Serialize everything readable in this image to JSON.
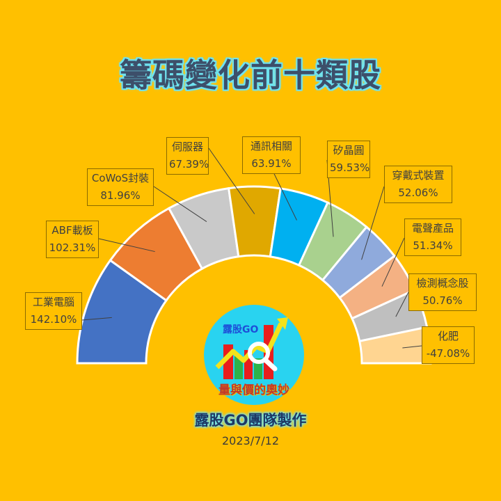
{
  "title": "籌碼變化前十類股",
  "credit": "露股GO團隊製作",
  "date": "2023/7/12",
  "logo": {
    "brand": "露股GO",
    "slogan": "量與價的奧妙"
  },
  "chart_data": {
    "type": "pie",
    "subtype": "half-donut",
    "title": "籌碼變化前十類股",
    "categories": [
      "工業電腦",
      "ABF載板",
      "CoWoS封裝",
      "伺服器",
      "通訊相關",
      "矽晶圓",
      "穿戴式裝置",
      "電聲產品",
      "檢測概念股",
      "化肥"
    ],
    "values": [
      142.1,
      102.31,
      81.96,
      67.39,
      63.91,
      59.53,
      52.06,
      51.34,
      50.76,
      -47.08
    ],
    "value_labels": [
      "142.10%",
      "102.31%",
      "81.96%",
      "67.39%",
      "63.91%",
      "59.53%",
      "52.06%",
      "51.34%",
      "50.76%",
      "-47.08%"
    ],
    "colors": [
      "#4472C4",
      "#ED7D31",
      "#C9C9C9",
      "#E0A800",
      "#00B0F0",
      "#A9D18E",
      "#8FAADC",
      "#F4B183",
      "#BFBFBF",
      "#FFD591"
    ],
    "legend": "none",
    "data_labels": "callouts with leader lines"
  },
  "labels": [
    {
      "name": "工業電腦",
      "value": "142.10%"
    },
    {
      "name": "ABF載板",
      "value": "102.31%"
    },
    {
      "name": "CoWoS封裝",
      "value": "81.96%"
    },
    {
      "name": "伺服器",
      "value": "67.39%"
    },
    {
      "name": "通訊相關",
      "value": "63.91%"
    },
    {
      "name": "矽晶圓",
      "value": "59.53%"
    },
    {
      "name": "穿戴式裝置",
      "value": "52.06%"
    },
    {
      "name": "電聲產品",
      "value": "51.34%"
    },
    {
      "name": "檢測概念股",
      "value": "50.76%"
    },
    {
      "name": "化肥",
      "value": "-47.08%"
    }
  ]
}
